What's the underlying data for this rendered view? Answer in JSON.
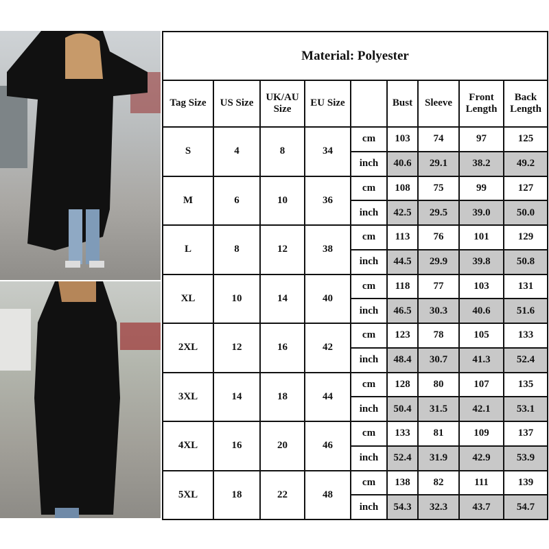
{
  "title": "Material: Polyester",
  "headers": [
    "Tag Size",
    "US Size",
    "UK/AU Size",
    "EU Size",
    "",
    "Bust",
    "Sleeve",
    "Front Length",
    "Back Length"
  ],
  "units": {
    "cm": "cm",
    "inch": "inch"
  },
  "rows": [
    {
      "tag": "S",
      "us": "4",
      "uk": "8",
      "eu": "34",
      "cm": [
        "103",
        "74",
        "97",
        "125"
      ],
      "inch": [
        "40.6",
        "29.1",
        "38.2",
        "49.2"
      ]
    },
    {
      "tag": "M",
      "us": "6",
      "uk": "10",
      "eu": "36",
      "cm": [
        "108",
        "75",
        "99",
        "127"
      ],
      "inch": [
        "42.5",
        "29.5",
        "39.0",
        "50.0"
      ]
    },
    {
      "tag": "L",
      "us": "8",
      "uk": "12",
      "eu": "38",
      "cm": [
        "113",
        "76",
        "101",
        "129"
      ],
      "inch": [
        "44.5",
        "29.9",
        "39.8",
        "50.8"
      ]
    },
    {
      "tag": "XL",
      "us": "10",
      "uk": "14",
      "eu": "40",
      "cm": [
        "118",
        "77",
        "103",
        "131"
      ],
      "inch": [
        "46.5",
        "30.3",
        "40.6",
        "51.6"
      ]
    },
    {
      "tag": "2XL",
      "us": "12",
      "uk": "16",
      "eu": "42",
      "cm": [
        "123",
        "78",
        "105",
        "133"
      ],
      "inch": [
        "48.4",
        "30.7",
        "41.3",
        "52.4"
      ]
    },
    {
      "tag": "3XL",
      "us": "14",
      "uk": "18",
      "eu": "44",
      "cm": [
        "128",
        "80",
        "107",
        "135"
      ],
      "inch": [
        "50.4",
        "31.5",
        "42.1",
        "53.1"
      ]
    },
    {
      "tag": "4XL",
      "us": "16",
      "uk": "20",
      "eu": "46",
      "cm": [
        "133",
        "81",
        "109",
        "137"
      ],
      "inch": [
        "52.4",
        "31.9",
        "42.9",
        "53.9"
      ]
    },
    {
      "tag": "5XL",
      "us": "18",
      "uk": "22",
      "eu": "48",
      "cm": [
        "138",
        "82",
        "111",
        "139"
      ],
      "inch": [
        "54.3",
        "32.3",
        "43.7",
        "54.7"
      ]
    }
  ],
  "colors": {
    "inch_fill": "#c8c8c8",
    "border": "#111111"
  }
}
